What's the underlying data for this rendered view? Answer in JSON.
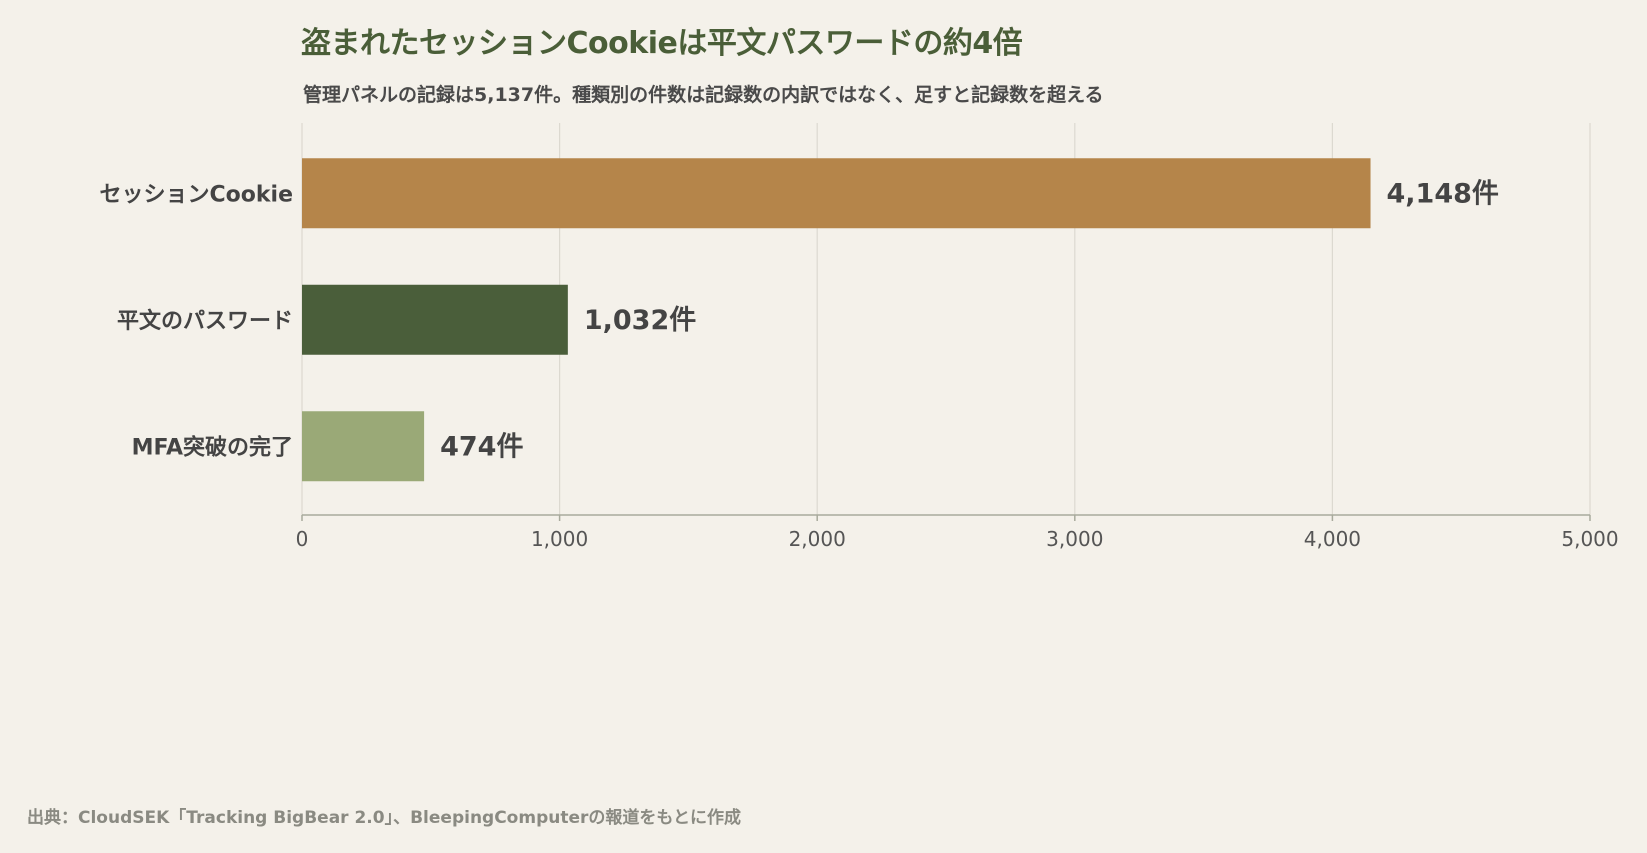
{
  "chart_data": {
    "type": "bar",
    "orientation": "horizontal",
    "title": "盗まれたセッションCookieは平文パスワードの約4倍",
    "subtitle": "管理パネルの記録は5,137件。種類別の件数は記録数の内訳ではなく、足すと記録数を超える",
    "categories": [
      "セッションCookie",
      "平文のパスワード",
      "MFA突破の完了"
    ],
    "values": [
      4148,
      1032,
      474
    ],
    "value_labels": [
      "4,148件",
      "1,032件",
      "474件"
    ],
    "colors": [
      "#b5854a",
      "#4a5e3a",
      "#9aa977"
    ],
    "xlim": [
      0,
      5000
    ],
    "xticks": [
      0,
      1000,
      2000,
      3000,
      4000,
      5000
    ],
    "xtick_labels": [
      "0",
      "1,000",
      "2,000",
      "3,000",
      "4,000",
      "5,000"
    ],
    "grid": true,
    "legend": "none",
    "xlabel": "",
    "ylabel": ""
  },
  "source": "出典：CloudSEK「Tracking BigBear 2.0」、BleepingComputerの報道をもとに作成"
}
